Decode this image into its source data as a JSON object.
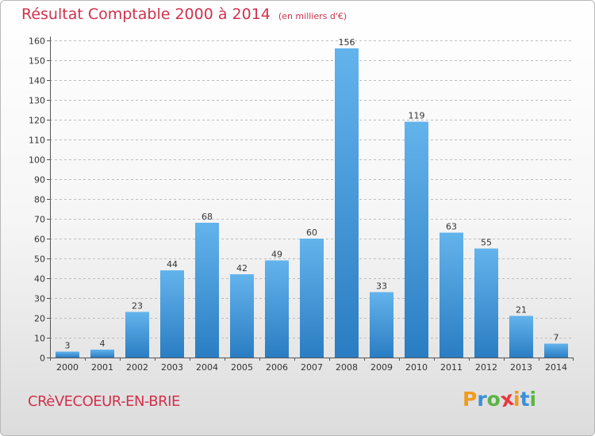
{
  "header": {
    "title": "Résultat Comptable 2000 à 2014",
    "subtitle": "(en milliers d'€)"
  },
  "footer": {
    "commune": "CRèVECOEUR-EN-BRIE",
    "logo_letters": [
      "P",
      "r",
      "o",
      "x",
      "i",
      "t",
      "i"
    ],
    "logo_colors": [
      "#f29a1e",
      "#3a8fd6",
      "#5bb446",
      "#e8383d",
      "#f29a1e",
      "#3a8fd6",
      "#5bb446"
    ]
  },
  "colors": {
    "bar_light": "#63b3ec",
    "bar_dark": "#2a7dc2",
    "title": "#d0314d",
    "grid": "#bdbdbd"
  },
  "chart_data": {
    "type": "bar",
    "title": "Résultat Comptable 2000 à 2014",
    "xlabel": "",
    "ylabel": "",
    "ylim": [
      0,
      160
    ],
    "ytick_step": 10,
    "grid": true,
    "categories": [
      "2000",
      "2001",
      "2002",
      "2003",
      "2004",
      "2005",
      "2006",
      "2007",
      "2008",
      "2009",
      "2010",
      "2011",
      "2012",
      "2013",
      "2014"
    ],
    "values": [
      3,
      4,
      23,
      44,
      68,
      42,
      49,
      60,
      156,
      33,
      119,
      63,
      55,
      21,
      7
    ]
  }
}
